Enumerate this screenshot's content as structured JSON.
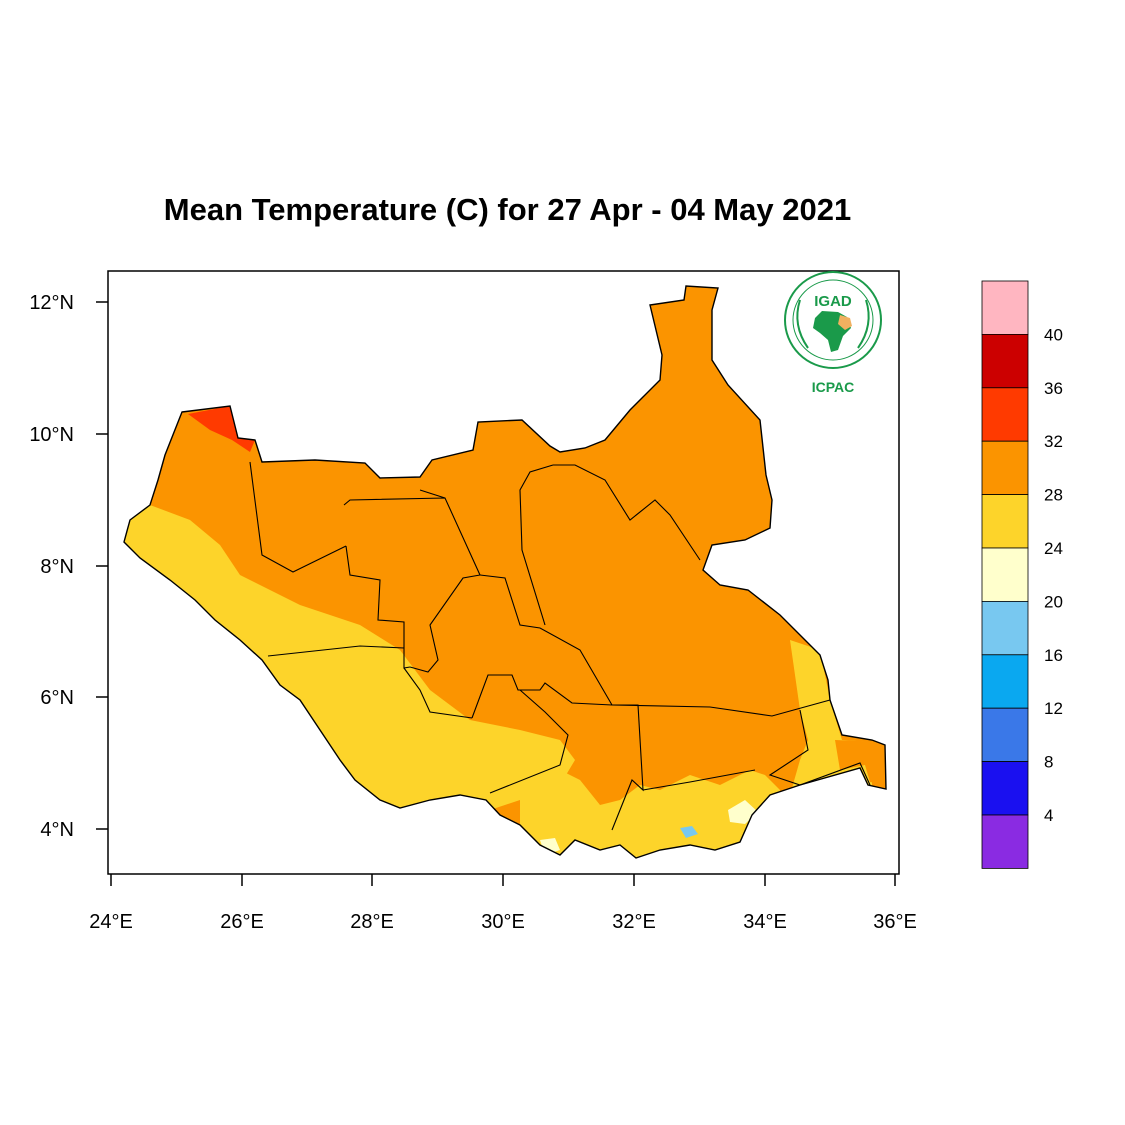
{
  "title": "Mean Temperature (C) for 27 Apr - 04 May 2021",
  "axes": {
    "x_ticks": [
      "24°E",
      "26°E",
      "28°E",
      "30°E",
      "32°E",
      "34°E",
      "36°E"
    ],
    "y_ticks": [
      "4°N",
      "6°N",
      "8°N",
      "10°N",
      "12°N"
    ]
  },
  "logo": {
    "top_text": "IGAD",
    "bottom_text": "ICPAC",
    "color": "#1a9a4a"
  },
  "colorbar": {
    "labels": [
      "4",
      "8",
      "12",
      "16",
      "20",
      "24",
      "28",
      "32",
      "36",
      "40"
    ],
    "colors": [
      "#8a2be2",
      "#1a10f0",
      "#3a78e8",
      "#0aa8f0",
      "#78c8f0",
      "#ffffcc",
      "#fdd42a",
      "#fb9400",
      "#ff3a00",
      "#cc0000",
      "#ffb6c1"
    ]
  },
  "map_colors": {
    "hot_29_32": "#fb9400",
    "warm_24_28": "#fdd42a",
    "mild_20_24": "#ffffcc",
    "cool_16_20": "#78c8f0",
    "extreme_32_36": "#ff3a00"
  }
}
